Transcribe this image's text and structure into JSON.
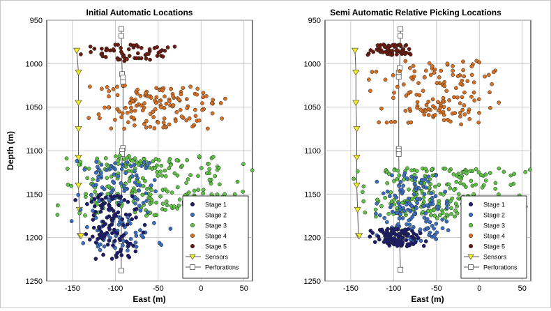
{
  "chart_data": [
    {
      "type": "scatter",
      "title": "Initial Automatic Locations",
      "xlabel": "East (m)",
      "ylabel": "Depth (m)",
      "xlim": [
        -180,
        60
      ],
      "ylim": [
        1250,
        950
      ],
      "y_inverted": true,
      "grid": true,
      "xticks": [
        "-150",
        "-100",
        "-50",
        "0",
        "50"
      ],
      "yticks": [
        "950",
        "1000",
        "1050",
        "1100",
        "1150",
        "1200",
        "1250"
      ],
      "legend_position": "bottom-right",
      "legend": [
        "Stage 1",
        "Stage 2",
        "Stage 3",
        "Stage 4",
        "Stage 5",
        "Sensors",
        "Perforations"
      ],
      "colors": {
        "Stage 1": "#1c1c6e",
        "Stage 2": "#3a6fc2",
        "Stage 3": "#5cc442",
        "Stage 4": "#d9701f",
        "Stage 5": "#6b1a0e",
        "Sensors": "#f2ee1a",
        "Perforations": "#ffffff"
      },
      "sensors": {
        "x": [
          -145,
          -143,
          -143,
          -143,
          -143,
          -143,
          -142,
          -141,
          -140
        ],
        "y": [
          985,
          1010,
          1045,
          1075,
          1108,
          1140,
          1168,
          1198,
          1198
        ]
      },
      "perforations": {
        "x": [
          -93,
          -93,
          -92,
          -91,
          -91,
          -91,
          -92,
          -92,
          -93,
          -93,
          -93
        ],
        "y": [
          960,
          968,
          1012,
          1016,
          1021,
          1097,
          1100,
          1104,
          1200,
          1204,
          1238
        ]
      },
      "series": [
        {
          "name": "Stage 1",
          "x_range": [
            -140,
            -70
          ],
          "y_range": [
            1150,
            1225
          ],
          "count": 110,
          "seed": 11
        },
        {
          "name": "Stage 2",
          "x_range": [
            -150,
            -40
          ],
          "y_range": [
            1110,
            1215
          ],
          "count": 140,
          "seed": 12
        },
        {
          "name": "Stage 3",
          "x_range": [
            -175,
            50
          ],
          "y_range": [
            1105,
            1175
          ],
          "count": 230,
          "seed": 13
        },
        {
          "name": "Stage 4",
          "x_range": [
            -135,
            30
          ],
          "y_range": [
            1025,
            1075
          ],
          "count": 140,
          "seed": 14
        },
        {
          "name": "Stage 5",
          "x_range": [
            -140,
            -30
          ],
          "y_range": [
            978,
            998
          ],
          "count": 60,
          "seed": 15
        }
      ]
    },
    {
      "type": "scatter",
      "title": "Semi Automatic Relative Picking Locations",
      "xlabel": "East (m)",
      "ylabel": "",
      "xlim": [
        -180,
        60
      ],
      "ylim": [
        1250,
        950
      ],
      "y_inverted": true,
      "grid": true,
      "xticks": [
        "-150",
        "-100",
        "-50",
        "0",
        "50"
      ],
      "yticks": [
        "950",
        "1000",
        "1050",
        "1100",
        "1150",
        "1200",
        "1250"
      ],
      "legend_position": "bottom-right",
      "legend": [
        "Stage 1",
        "Stage 2",
        "Stage 3",
        "Stage 4",
        "Stage 5",
        "Sensors",
        "Perforations"
      ],
      "colors": {
        "Stage 1": "#1c1c6e",
        "Stage 2": "#3a6fc2",
        "Stage 3": "#5cc442",
        "Stage 4": "#d9701f",
        "Stage 5": "#6b1a0e",
        "Sensors": "#f2ee1a",
        "Perforations": "#ffffff"
      },
      "sensors": {
        "x": [
          -145,
          -144,
          -144,
          -143,
          -143,
          -143,
          -142,
          -141,
          -140
        ],
        "y": [
          985,
          1010,
          1045,
          1075,
          1108,
          1140,
          1168,
          1198,
          1198
        ]
      },
      "perforations": {
        "x": [
          -92,
          -92,
          -93,
          -94,
          -94,
          -94,
          -94,
          -94,
          -93,
          -93,
          -92
        ],
        "y": [
          960,
          968,
          1005,
          1010,
          1015,
          1098,
          1100,
          1104,
          1195,
          1205,
          1237
        ]
      },
      "series": [
        {
          "name": "Stage 1",
          "x_range": [
            -125,
            -65
          ],
          "y_range": [
            1190,
            1210
          ],
          "count": 110,
          "seed": 21
        },
        {
          "name": "Stage 2",
          "x_range": [
            -120,
            -30
          ],
          "y_range": [
            1125,
            1205
          ],
          "count": 140,
          "seed": 22
        },
        {
          "name": "Stage 3",
          "x_range": [
            -145,
            55
          ],
          "y_range": [
            1120,
            1178
          ],
          "count": 230,
          "seed": 23
        },
        {
          "name": "Stage 4",
          "x_range": [
            -130,
            40
          ],
          "y_range": [
            995,
            1070
          ],
          "count": 140,
          "seed": 24
        },
        {
          "name": "Stage 5",
          "x_range": [
            -130,
            -75
          ],
          "y_range": [
            978,
            990
          ],
          "count": 60,
          "seed": 25
        }
      ]
    }
  ]
}
